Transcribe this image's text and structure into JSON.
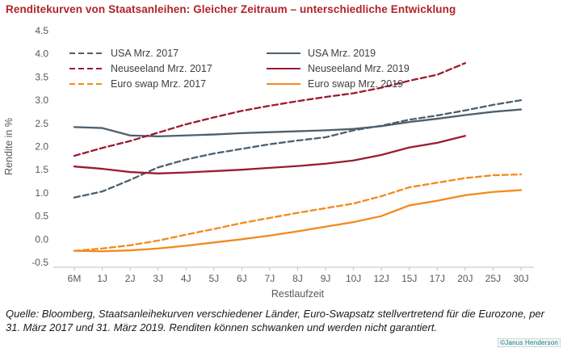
{
  "title": "Renditekurven von Staatsanleihen: Gleicher Zeitraum – unterschiedliche Entwicklung",
  "source_note": "Quelle: Bloomberg, Staatsanleihekurven verschiedener Länder, Euro-Swapsatz stellvertretend für die Eurozone, per 31. März 2017 und 31. März 2019. Renditen können schwanken und werden nicht garantiert.",
  "watermark": "©Janus Henderson",
  "colors": {
    "title": "#b2232a",
    "usa": "#4d5f6d",
    "neuseeland": "#9a1b33",
    "euro_swap": "#f28a1e",
    "axis_text": "#595959",
    "axis_line": "#bfbfbf"
  },
  "chart_data": {
    "type": "line",
    "title": "Renditekurven von Staatsanleihen: Gleicher Zeitraum – unterschiedliche Entwicklung",
    "xlabel": "Restlaufzeit",
    "ylabel": "Rendite in %",
    "ylim": [
      -0.5,
      4.5
    ],
    "yticks": [
      "4.5",
      "4.0",
      "3.5",
      "3.0",
      "2.5",
      "2.0",
      "1.5",
      "1.0",
      "0.5",
      "0.0",
      "-0.5"
    ],
    "grid": false,
    "legend_position": "top-inside, two columns (2017 dashed left, 2019 solid right)",
    "categories": [
      "6M",
      "1J",
      "2J",
      "3J",
      "4J",
      "5J",
      "6J",
      "7J",
      "8J",
      "9J",
      "10J",
      "12J",
      "15J",
      "17J",
      "20J",
      "25J",
      "30J"
    ],
    "series": [
      {
        "id": "usa-mrz-2017",
        "name": "USA Mrz. 2017",
        "color": "#4d5f6d",
        "dash": "dashed",
        "values": [
          0.9,
          1.03,
          1.28,
          1.55,
          1.72,
          1.85,
          1.95,
          2.05,
          2.13,
          2.2,
          2.35,
          2.45,
          2.58,
          2.67,
          2.78,
          2.9,
          3.0
        ]
      },
      {
        "id": "usa-mrz-2019",
        "name": "USA Mrz. 2019",
        "color": "#4d5f6d",
        "dash": "solid",
        "values": [
          2.42,
          2.4,
          2.24,
          2.22,
          2.24,
          2.26,
          2.29,
          2.31,
          2.33,
          2.35,
          2.38,
          2.44,
          2.53,
          2.6,
          2.68,
          2.75,
          2.8
        ]
      },
      {
        "id": "neuseeland-mrz-2017",
        "name": "Neuseeland Mrz. 2017",
        "color": "#9a1b33",
        "dash": "dashed",
        "values": [
          1.8,
          1.97,
          2.12,
          2.3,
          2.48,
          2.63,
          2.77,
          2.88,
          2.98,
          3.07,
          3.15,
          3.27,
          3.42,
          3.55,
          3.8,
          null,
          null
        ]
      },
      {
        "id": "neuseeland-mrz-2019",
        "name": "Neuseeland Mrz. 2019",
        "color": "#9a1b33",
        "dash": "solid",
        "values": [
          1.57,
          1.52,
          1.45,
          1.42,
          1.44,
          1.47,
          1.5,
          1.54,
          1.58,
          1.63,
          1.7,
          1.82,
          1.98,
          2.08,
          2.23,
          null,
          null
        ]
      },
      {
        "id": "euro-swap-mrz-2017",
        "name": "Euro swap Mrz. 2017",
        "color": "#f28a1e",
        "dash": "dashed",
        "values": [
          -0.25,
          -0.2,
          -0.13,
          -0.03,
          0.1,
          0.22,
          0.35,
          0.46,
          0.57,
          0.67,
          0.77,
          0.93,
          1.12,
          1.22,
          1.32,
          1.38,
          1.4
        ]
      },
      {
        "id": "euro-swap-mrz-2019",
        "name": "Euro swap Mrz. 2019",
        "color": "#f28a1e",
        "dash": "solid",
        "values": [
          -0.25,
          -0.26,
          -0.24,
          -0.2,
          -0.14,
          -0.07,
          0.0,
          0.08,
          0.17,
          0.27,
          0.37,
          0.5,
          0.73,
          0.83,
          0.95,
          1.02,
          1.06
        ]
      }
    ]
  }
}
